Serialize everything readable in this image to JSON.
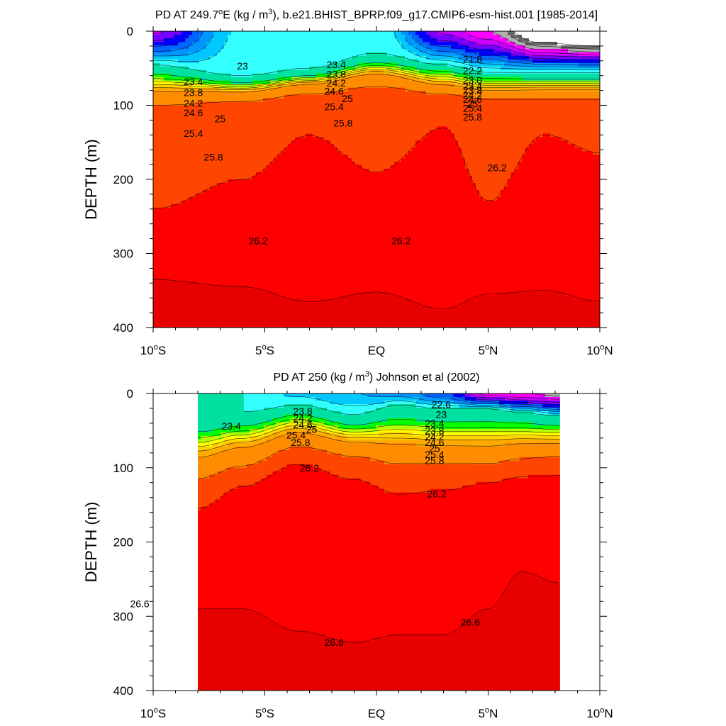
{
  "chart_data": [
    {
      "type": "contour",
      "title_main": "PD AT 249.7",
      "title_sup": "o",
      "title_post": "E (kg / m",
      "title_unit_sup": "3",
      "title_tail": "), b.e21.BHIST_BPRP.f09_g17.CMIP6-esm-hist.001 [1985-2014]",
      "ylabel": "DEPTH (m)",
      "xlim": [
        -10,
        10
      ],
      "ylim": [
        0,
        400
      ],
      "y_reversed": true,
      "xticks": [
        {
          "pre": "10",
          "sup": "o",
          "post": "S"
        },
        {
          "pre": "5",
          "sup": "o",
          "post": "S"
        },
        {
          "pre": "EQ",
          "sup": "",
          "post": ""
        },
        {
          "pre": "5",
          "sup": "o",
          "post": "N"
        },
        {
          "pre": "10",
          "sup": "o",
          "post": "N"
        }
      ],
      "yticks": [
        "0",
        "100",
        "200",
        "300",
        "400"
      ],
      "data_x_range": [
        -10,
        10
      ],
      "field": {
        "x": [
          -10,
          -6,
          -3,
          0,
          3,
          5,
          7.5,
          10
        ],
        "t": [
          20.5,
          22.7,
          22.9,
          23.0,
          20.5,
          19.8,
          18.0,
          17.5
        ],
        "k_up": [
          22,
          25,
          25,
          24,
          18,
          25,
          25,
          25
        ],
        "k_dn": [
          45,
          55,
          60,
          60,
          45,
          50,
          50,
          50
        ],
        "k2": [
          9,
          18,
          22,
          22,
          6,
          8,
          13,
          13
        ],
        "z_t": [
          45,
          60,
          50,
          30,
          45,
          55,
          55,
          55
        ],
        "z_p": [
          100,
          95,
          85,
          75,
          85,
          92,
          92,
          92
        ],
        "z_a": [
          240,
          200,
          140,
          190,
          130,
          230,
          140,
          165
        ],
        "z_b": [
          275,
          270,
          280,
          280,
          285,
          210,
          150,
          150
        ],
        "z_c": [
          335,
          345,
          365,
          352,
          375,
          355,
          350,
          365
        ]
      },
      "levels": [
        19.0,
        19.4,
        19.8,
        20.2,
        20.6,
        21.0,
        21.4,
        21.8,
        22.2,
        22.6,
        23.0,
        23.4,
        23.8,
        24.2,
        24.6,
        25.0,
        25.4,
        25.8,
        26.2,
        26.6,
        27.0
      ],
      "colors": [
        "#ffffff",
        "#686868",
        "#b0b0b0",
        "#ff00ff",
        "#c800ff",
        "#7800ff",
        "#0000ff",
        "#0064ff",
        "#0096ff",
        "#00c8ff",
        "#33ffff",
        "#00e0a0",
        "#00ff00",
        "#b4ff00",
        "#ffff00",
        "#ffd200",
        "#ffaa00",
        "#ff8c00",
        "#ff4600",
        "#ff0000",
        "#e60000",
        "#cc0000"
      ],
      "contour_labels": [
        {
          "text": "23",
          "x": -6.0,
          "y": 47
        },
        {
          "text": "23.4",
          "x": -8.2,
          "y": 68
        },
        {
          "text": "23.8",
          "x": -8.2,
          "y": 83
        },
        {
          "text": "24.2",
          "x": -8.2,
          "y": 97
        },
        {
          "text": "24.6",
          "x": -8.2,
          "y": 110
        },
        {
          "text": "25",
          "x": -7.0,
          "y": 118
        },
        {
          "text": "25.4",
          "x": -8.2,
          "y": 138
        },
        {
          "text": "25.8",
          "x": -7.3,
          "y": 170
        },
        {
          "text": "23.4",
          "x": -1.8,
          "y": 45
        },
        {
          "text": "23.8",
          "x": -1.8,
          "y": 58
        },
        {
          "text": "24.2",
          "x": -1.8,
          "y": 70
        },
        {
          "text": "24.6",
          "x": -1.9,
          "y": 81
        },
        {
          "text": "25",
          "x": -1.3,
          "y": 91
        },
        {
          "text": "25.4",
          "x": -1.9,
          "y": 102
        },
        {
          "text": "25.8",
          "x": -1.5,
          "y": 124
        },
        {
          "text": "21.8",
          "x": 4.3,
          "y": 38
        },
        {
          "text": "22.2",
          "x": 4.3,
          "y": 53
        },
        {
          "text": "23.0",
          "x": 4.3,
          "y": 66
        },
        {
          "text": "23.4",
          "x": 4.3,
          "y": 74
        },
        {
          "text": "23.8",
          "x": 4.3,
          "y": 80
        },
        {
          "text": "24.2",
          "x": 4.3,
          "y": 86
        },
        {
          "text": "24.6",
          "x": 4.3,
          "y": 92
        },
        {
          "text": "25",
          "x": 4.3,
          "y": 98
        },
        {
          "text": "25.4",
          "x": 4.3,
          "y": 104
        },
        {
          "text": "25.8",
          "x": 4.3,
          "y": 116
        },
        {
          "text": "26.2",
          "x": 5.4,
          "y": 184
        },
        {
          "text": "26.2",
          "x": -5.3,
          "y": 283
        },
        {
          "text": "26.2",
          "x": 1.1,
          "y": 283
        }
      ]
    },
    {
      "type": "contour",
      "title_main": "PD AT 250 (kg / m",
      "title_sup": "3",
      "title_post": ") Johnson et al (2002)",
      "title_unit_sup": "",
      "title_tail": "",
      "ylabel": "DEPTH (m)",
      "xlim": [
        -10,
        10
      ],
      "ylim": [
        0,
        400
      ],
      "y_reversed": true,
      "xticks": [
        {
          "pre": "10",
          "sup": "o",
          "post": "S"
        },
        {
          "pre": "5",
          "sup": "o",
          "post": "S"
        },
        {
          "pre": "EQ",
          "sup": "",
          "post": ""
        },
        {
          "pre": "5",
          "sup": "o",
          "post": "N"
        },
        {
          "pre": "10",
          "sup": "o",
          "post": "N"
        }
      ],
      "yticks": [
        "0",
        "100",
        "200",
        "300",
        "400"
      ],
      "data_x_range": [
        -8,
        8.2
      ],
      "field": {
        "x": [
          -8,
          -6,
          -3.5,
          -1,
          1,
          3,
          5,
          6.5,
          8.2
        ],
        "t": [
          23.3,
          23.0,
          22.5,
          22.2,
          22.0,
          21.5,
          20.0,
          19.8,
          19.6
        ],
        "k_up": [
          20,
          22,
          18,
          20,
          20,
          22,
          22,
          22,
          22
        ],
        "k_dn": [
          40,
          40,
          36,
          40,
          40,
          40,
          45,
          45,
          45
        ],
        "k2": [
          12,
          13,
          10,
          12,
          10,
          9,
          8,
          8,
          8
        ],
        "z_t": [
          30,
          25,
          15,
          28,
          15,
          20,
          20,
          25,
          30
        ],
        "z_p": [
          115,
          98,
          72,
          85,
          95,
          95,
          95,
          88,
          85
        ],
        "z_a": [
          155,
          125,
          95,
          115,
          135,
          130,
          120,
          112,
          110
        ],
        "z_b": [
          185,
          170,
          200,
          240,
          238,
          240,
          200,
          155,
          165
        ],
        "z_c": [
          290,
          290,
          320,
          335,
          325,
          325,
          290,
          240,
          255
        ]
      },
      "levels": [
        19.0,
        19.4,
        19.8,
        20.2,
        20.6,
        21.0,
        21.4,
        21.8,
        22.2,
        22.6,
        23.0,
        23.4,
        23.8,
        24.2,
        24.6,
        25.0,
        25.4,
        25.8,
        26.2,
        26.6,
        27.0
      ],
      "colors": [
        "#ffffff",
        "#686868",
        "#b0b0b0",
        "#ff00ff",
        "#c800ff",
        "#7800ff",
        "#0000ff",
        "#0064ff",
        "#0096ff",
        "#00c8ff",
        "#33ffff",
        "#00e0a0",
        "#00ff00",
        "#b4ff00",
        "#ffff00",
        "#ffd200",
        "#ffaa00",
        "#ff8c00",
        "#ff4600",
        "#ff0000",
        "#e60000",
        "#cc0000"
      ],
      "contour_labels": [
        {
          "text": "23.4",
          "x": -6.5,
          "y": 44
        },
        {
          "text": "23.8",
          "x": -3.3,
          "y": 24
        },
        {
          "text": "24.2",
          "x": -3.3,
          "y": 33
        },
        {
          "text": "24.6",
          "x": -3.3,
          "y": 42
        },
        {
          "text": "25",
          "x": -2.9,
          "y": 48
        },
        {
          "text": "25.4",
          "x": -3.6,
          "y": 56
        },
        {
          "text": "25.8",
          "x": -3.4,
          "y": 66
        },
        {
          "text": "26.2",
          "x": -3.0,
          "y": 100
        },
        {
          "text": "22.6",
          "x": 2.9,
          "y": 15
        },
        {
          "text": "23",
          "x": 2.9,
          "y": 28
        },
        {
          "text": "23.4",
          "x": 2.6,
          "y": 40
        },
        {
          "text": "23.8",
          "x": 2.6,
          "y": 50
        },
        {
          "text": "24.2",
          "x": 2.6,
          "y": 58
        },
        {
          "text": "24.6",
          "x": 2.6,
          "y": 66
        },
        {
          "text": "25",
          "x": 2.6,
          "y": 74
        },
        {
          "text": "25.4",
          "x": 2.6,
          "y": 82
        },
        {
          "text": "25.8",
          "x": 2.6,
          "y": 90
        },
        {
          "text": "26.2",
          "x": 2.7,
          "y": 135
        },
        {
          "text": "26.6",
          "x": -10.6,
          "y": 283
        },
        {
          "text": "26.6",
          "x": -1.9,
          "y": 335
        },
        {
          "text": "26.6",
          "x": 4.2,
          "y": 308
        }
      ]
    }
  ]
}
